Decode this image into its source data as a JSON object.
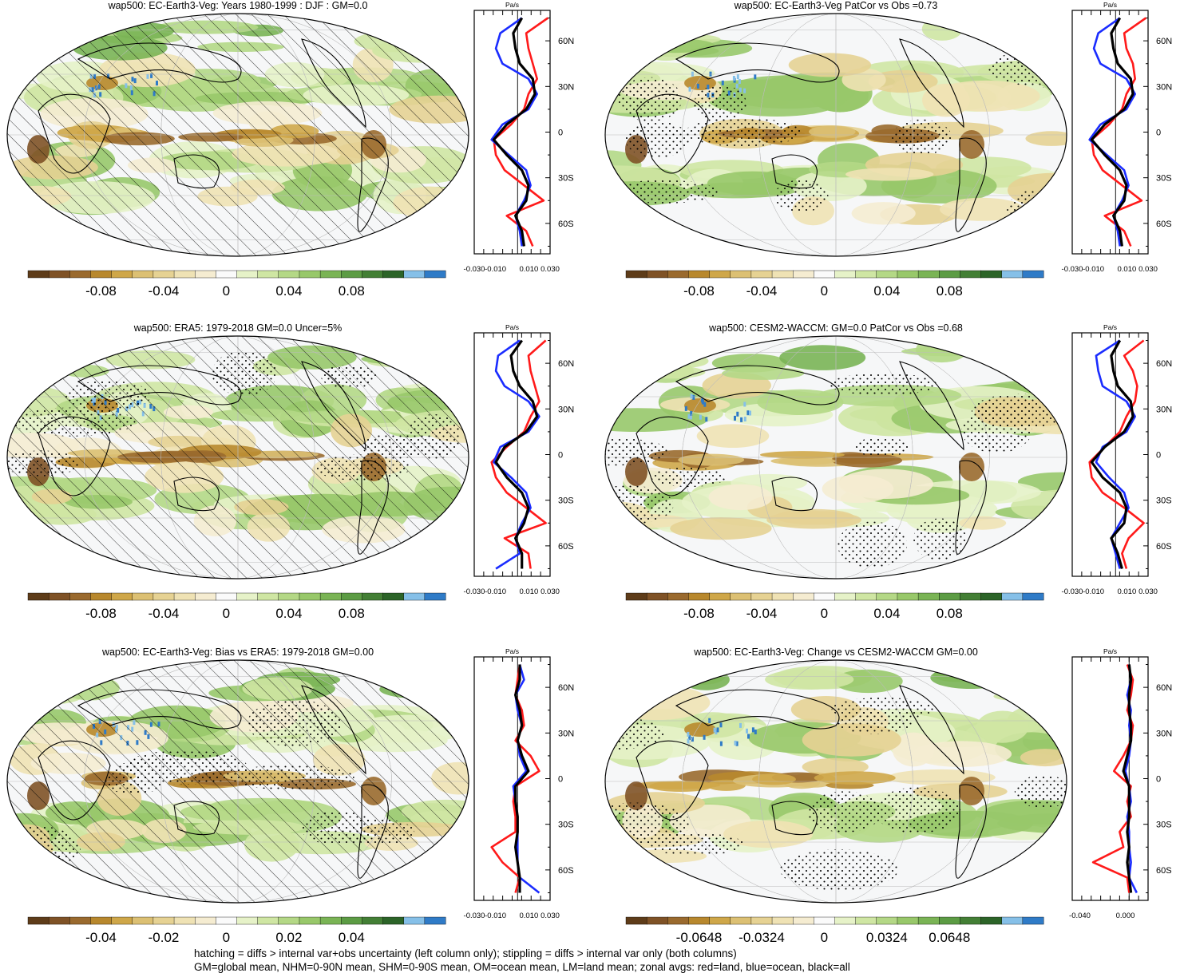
{
  "colors": {
    "brown": [
      "#5e3c19",
      "#7f5226",
      "#9a6a2e",
      "#b8882d",
      "#cfa749",
      "#dcc073",
      "#e6d293",
      "#efe2b4",
      "#f5ecd1"
    ],
    "white": "#fafafa",
    "green": [
      "#e6f2c8",
      "#cfe6a3",
      "#b4d886",
      "#98c86a",
      "#7ab455",
      "#5c9c44",
      "#437f35",
      "#2c6428"
    ],
    "blue": [
      "#86c0e8",
      "#2f7bc7"
    ],
    "zonal_land": "#ff1a1a",
    "zonal_ocean": "#1a2cff",
    "zonal_all": "#000000"
  },
  "panels": [
    {
      "id": "p1",
      "title": "wap500: EC-Earth3-Veg: Years 1980-1999 : DJF : GM=0.0",
      "hatched": true,
      "stippled": false,
      "colorbar_labels": [
        "-0.08",
        "-0.04",
        "0",
        "0.04",
        "0.08"
      ],
      "zonal_unit": "Pa/s",
      "zonal_ticks": [
        "-0.030",
        "-0.010",
        "0.010",
        "0.030"
      ],
      "zonal_lat_labels": [
        "60N",
        "30N",
        "0",
        "30S",
        "60S"
      ]
    },
    {
      "id": "p2",
      "title": "wap500: EC-Earth3-Veg PatCor vs Obs =0.73",
      "hatched": false,
      "stippled": true,
      "colorbar_labels": [
        "-0.08",
        "-0.04",
        "0",
        "0.04",
        "0.08"
      ],
      "zonal_unit": "Pa/s",
      "zonal_ticks": [
        "-0.030",
        "-0.010",
        "0.010",
        "0.030"
      ],
      "zonal_lat_labels": [
        "60N",
        "30N",
        "0",
        "30S",
        "60S"
      ]
    },
    {
      "id": "p3",
      "title": "wap500: ERA5: 1979-2018 GM=0.0 Uncer=5%",
      "hatched": true,
      "stippled": true,
      "colorbar_labels": [
        "-0.08",
        "-0.04",
        "0",
        "0.04",
        "0.08"
      ],
      "zonal_unit": "Pa/s",
      "zonal_ticks": [
        "-0.030",
        "-0.010",
        "0.010",
        "0.030"
      ],
      "zonal_lat_labels": [
        "60N",
        "30N",
        "0",
        "30S",
        "60S"
      ]
    },
    {
      "id": "p4",
      "title": "wap500: CESM2-WACCM: GM=0.0 PatCor vs Obs =0.68",
      "hatched": false,
      "stippled": true,
      "colorbar_labels": [
        "-0.08",
        "-0.04",
        "0",
        "0.04",
        "0.08"
      ],
      "zonal_unit": "Pa/s",
      "zonal_ticks": [
        "-0.030",
        "-0.010",
        "0.010",
        "0.030"
      ],
      "zonal_lat_labels": [
        "60N",
        "30N",
        "0",
        "30S",
        "60S"
      ]
    },
    {
      "id": "p5",
      "title": "wap500: EC-Earth3-Veg: Bias vs ERA5: 1979-2018 GM=0.00",
      "hatched": true,
      "stippled": true,
      "colorbar_labels": [
        "-0.04",
        "-0.02",
        "0",
        "0.02",
        "0.04"
      ],
      "zonal_unit": "Pa/s",
      "zonal_ticks": [
        "-0.030",
        "-0.010",
        "0.010",
        "0.030"
      ],
      "zonal_lat_labels": [
        "60N",
        "30N",
        "0",
        "30S",
        "60S"
      ]
    },
    {
      "id": "p6",
      "title": "wap500: EC-Earth3-Veg: Change vs CESM2-WACCM GM=0.00",
      "hatched": false,
      "stippled": true,
      "colorbar_labels": [
        "-0.0648",
        "-0.0324",
        "0",
        "0.0324",
        "0.0648"
      ],
      "zonal_unit": "Pa/s",
      "zonal_ticks": [
        "-0.040",
        "0.000"
      ],
      "zonal_lat_labels": [
        "60N",
        "30N",
        "0",
        "30S",
        "60S"
      ]
    }
  ],
  "chart_data": [
    {
      "type": "line",
      "panel": "p1",
      "xlim": [
        -0.04,
        0.03
      ],
      "ylim": [
        -80,
        80
      ],
      "y": [
        75,
        65,
        55,
        45,
        35,
        25,
        15,
        5,
        -5,
        -15,
        -25,
        -35,
        -45,
        -55,
        -65,
        -75
      ],
      "series": [
        {
          "name": "red=land",
          "values": [
            0.028,
            0.008,
            0.01,
            0.014,
            0.018,
            0.01,
            0.006,
            -0.006,
            -0.022,
            -0.02,
            -0.012,
            0.006,
            0.024,
            -0.01,
            0.008,
            0.014
          ]
        },
        {
          "name": "blue=ocean",
          "values": [
            0.004,
            -0.016,
            -0.02,
            -0.014,
            0.01,
            0.018,
            0.01,
            -0.014,
            -0.024,
            -0.008,
            0.008,
            0.012,
            0.006,
            -0.002,
            0.002,
            0.004
          ]
        },
        {
          "name": "black=all",
          "values": [
            0.004,
            -0.004,
            -0.002,
            0.002,
            0.014,
            0.016,
            0.008,
            -0.01,
            -0.022,
            -0.01,
            0.004,
            0.01,
            0.008,
            -0.002,
            0.004,
            0.006
          ]
        }
      ]
    },
    {
      "type": "line",
      "panel": "p2",
      "xlim": [
        -0.04,
        0.03
      ],
      "ylim": [
        -80,
        80
      ],
      "y": [
        75,
        65,
        55,
        45,
        35,
        25,
        15,
        5,
        -5,
        -15,
        -25,
        -35,
        -45,
        -55,
        -65,
        -75
      ],
      "series": [
        {
          "name": "red=land",
          "values": [
            0.028,
            0.008,
            0.01,
            0.016,
            0.018,
            0.01,
            0.006,
            -0.006,
            -0.022,
            -0.02,
            -0.012,
            0.006,
            0.024,
            -0.01,
            0.008,
            0.014
          ]
        },
        {
          "name": "blue=ocean",
          "values": [
            0.004,
            -0.016,
            -0.02,
            -0.014,
            0.01,
            0.018,
            0.01,
            -0.014,
            -0.024,
            -0.008,
            0.008,
            0.012,
            0.006,
            -0.002,
            0.002,
            0.004
          ]
        },
        {
          "name": "black=all",
          "values": [
            0.004,
            -0.004,
            -0.002,
            0.002,
            0.014,
            0.016,
            0.008,
            -0.01,
            -0.022,
            -0.01,
            0.004,
            0.01,
            0.008,
            -0.002,
            0.004,
            0.006
          ]
        }
      ]
    },
    {
      "type": "line",
      "panel": "p3",
      "xlim": [
        -0.04,
        0.03
      ],
      "ylim": [
        -80,
        80
      ],
      "y": [
        75,
        65,
        55,
        45,
        35,
        25,
        15,
        5,
        -5,
        -15,
        -25,
        -35,
        -45,
        -55,
        -65,
        -75
      ],
      "series": [
        {
          "name": "red=land",
          "values": [
            0.026,
            0.01,
            0.012,
            0.016,
            0.02,
            0.012,
            0.006,
            -0.01,
            -0.024,
            -0.02,
            -0.01,
            0.008,
            0.026,
            -0.012,
            0.01,
            0.012
          ]
        },
        {
          "name": "blue=ocean",
          "values": [
            0.002,
            -0.018,
            -0.02,
            -0.012,
            0.01,
            0.02,
            0.01,
            -0.016,
            -0.022,
            -0.006,
            0.008,
            0.012,
            0.004,
            -0.002,
            0.002,
            -0.02
          ]
        },
        {
          "name": "black=all",
          "values": [
            0.004,
            -0.006,
            -0.004,
            0.002,
            0.014,
            0.018,
            0.008,
            -0.012,
            -0.02,
            -0.01,
            0.004,
            0.01,
            0.006,
            -0.002,
            0.004,
            0.004
          ]
        }
      ]
    },
    {
      "type": "line",
      "panel": "p4",
      "xlim": [
        -0.04,
        0.03
      ],
      "ylim": [
        -80,
        80
      ],
      "y": [
        75,
        65,
        55,
        45,
        35,
        25,
        15,
        5,
        -5,
        -15,
        -25,
        -35,
        -45,
        -55,
        -65,
        -75
      ],
      "series": [
        {
          "name": "red=land",
          "values": [
            0.026,
            0.008,
            0.016,
            0.02,
            0.018,
            0.01,
            0.004,
            -0.01,
            -0.024,
            -0.022,
            -0.012,
            0.008,
            0.026,
            0.012,
            0.006,
            0.01
          ]
        },
        {
          "name": "blue=ocean",
          "values": [
            0.004,
            -0.018,
            -0.016,
            -0.012,
            0.01,
            0.018,
            0.01,
            -0.012,
            -0.018,
            -0.006,
            0.008,
            0.012,
            0.004,
            -0.004,
            0.0,
            0.004
          ]
        },
        {
          "name": "black=all",
          "values": [
            0.004,
            -0.004,
            -0.002,
            0.002,
            0.014,
            0.016,
            0.008,
            -0.01,
            -0.022,
            -0.012,
            0.004,
            0.01,
            0.008,
            -0.004,
            0.002,
            0.006
          ]
        }
      ]
    },
    {
      "type": "line",
      "panel": "p5",
      "xlim": [
        -0.04,
        0.03
      ],
      "ylim": [
        -80,
        80
      ],
      "y": [
        75,
        65,
        55,
        45,
        35,
        25,
        15,
        5,
        -5,
        -15,
        -25,
        -35,
        -45,
        -55,
        -65,
        -75
      ],
      "series": [
        {
          "name": "red=land",
          "values": [
            0.002,
            0.0,
            -0.002,
            0.004,
            0.006,
            -0.002,
            0.012,
            0.02,
            -0.002,
            -0.004,
            -0.002,
            -0.002,
            -0.024,
            -0.014,
            0.002,
            -0.002
          ]
        },
        {
          "name": "blue=ocean",
          "values": [
            0.002,
            0.006,
            -0.002,
            0.0,
            0.004,
            0.0,
            0.002,
            0.008,
            -0.004,
            -0.002,
            0.0,
            0.0,
            0.0,
            0.0,
            0.002,
            0.02
          ]
        },
        {
          "name": "black=all",
          "values": [
            0.002,
            0.002,
            -0.002,
            0.002,
            0.004,
            0.0,
            0.004,
            0.01,
            -0.002,
            -0.002,
            0.0,
            0.0,
            -0.002,
            0.0,
            0.002,
            0.002
          ]
        }
      ]
    },
    {
      "type": "line",
      "panel": "p6",
      "xlim": [
        -0.06,
        0.02
      ],
      "ylim": [
        -80,
        80
      ],
      "y": [
        75,
        65,
        55,
        45,
        35,
        25,
        15,
        5,
        -5,
        -15,
        -25,
        -35,
        -45,
        -55,
        -65,
        -75
      ],
      "series": [
        {
          "name": "red=land",
          "values": [
            -0.002,
            0.004,
            0.002,
            -0.002,
            0.004,
            0.002,
            -0.006,
            -0.016,
            0.002,
            -0.002,
            0.002,
            -0.01,
            -0.006,
            -0.038,
            -0.002,
            0.0
          ]
        },
        {
          "name": "blue=ocean",
          "values": [
            0.0,
            0.002,
            -0.002,
            0.002,
            0.0,
            0.002,
            0.0,
            -0.004,
            0.0,
            0.002,
            -0.002,
            0.0,
            0.0,
            0.002,
            0.0,
            0.008
          ]
        },
        {
          "name": "black=all",
          "values": [
            0.0,
            0.002,
            0.0,
            0.0,
            0.002,
            0.002,
            -0.002,
            -0.006,
            0.0,
            0.0,
            0.0,
            -0.002,
            0.0,
            -0.002,
            0.0,
            0.002
          ]
        }
      ]
    }
  ],
  "footnote": {
    "line1": "hatching = diffs > internal var+obs uncertainty (left column only); stippling = diffs > internal var only (both columns)",
    "line2": "GM=global mean, NHM=0-90N mean, SHM=0-90S mean, OM=ocean mean, LM=land mean; zonal avgs: red=land, blue=ocean, black=all"
  }
}
